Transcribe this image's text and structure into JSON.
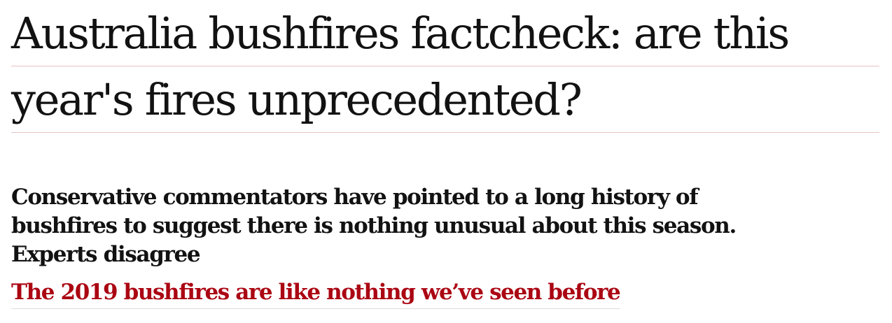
{
  "article": {
    "headline_lines": [
      "Australia bushfires factcheck: are this",
      "year's fires unprecedented?"
    ],
    "standfirst_lines": [
      "Conservative commentators have pointed to a long history of",
      "bushfires to suggest there is nothing unusual about this season.",
      "Experts disagree"
    ],
    "related_link": "The 2019 bushfires are like nothing we’ve seen before"
  },
  "colors": {
    "text": "#121212",
    "link": "#ab0613",
    "rule": "#e5c1c3"
  }
}
